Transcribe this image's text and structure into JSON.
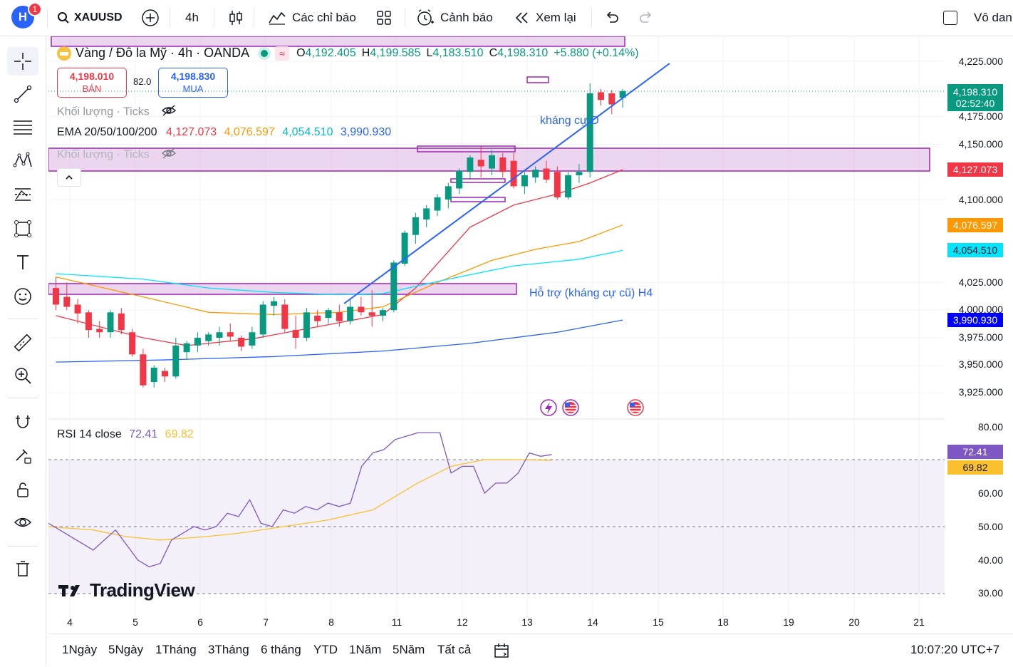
{
  "toolbar": {
    "avatar_letter": "H",
    "notification_count": "1",
    "symbol": "XAUUSD",
    "interval": "4h",
    "indicators_label": "Các chỉ báo",
    "alerts_label": "Cảnh báo",
    "replay_label": "Xem lại",
    "right_label": "Vô dan"
  },
  "legend": {
    "title": "Vàng / Đô la Mỹ · 4h · OANDA",
    "o_label": "O",
    "o_value": "4,192.405",
    "h_label": "H",
    "h_value": "4,199.585",
    "l_label": "L",
    "l_value": "4,183.510",
    "c_label": "C",
    "c_value": "4,198.310",
    "change": "+5.880 (+0.14%)",
    "sell_price": "4,198.010",
    "sell_label": "BÁN",
    "spread": "82.0",
    "buy_price": "4,198.830",
    "buy_label": "MUA",
    "volume_label": "Khối lượng · Ticks",
    "ema_label": "EMA 20/50/100/200",
    "ema20": "4,127.073",
    "ema50": "4,076.597",
    "ema100": "4,054.510",
    "ema200": "3,990.930",
    "rsi_label": "RSI 14 close",
    "rsi_value": "72.41",
    "rsi_ma_value": "69.82"
  },
  "annotations": {
    "resistance": "kháng cự D",
    "support": "Hỗ trợ (kháng cự cũ) H4"
  },
  "price_axis": {
    "ticks": [
      "4,225.000",
      "4,175.000",
      "4,150.000",
      "4,100.000",
      "4,025.000",
      "4,000.000",
      "3,975.000",
      "3,950.000",
      "3,925.000"
    ],
    "current_price": "4,198.310",
    "countdown": "02:52:40",
    "ema20_tag": "4,127.073",
    "ema50_tag": "4,076.597",
    "ema100_tag": "4,054.510",
    "ema200_tag": "3,990.930"
  },
  "rsi_axis": {
    "ticks": [
      "80.00",
      "60.00",
      "50.00",
      "40.00",
      "30.00"
    ],
    "rsi_tag": "72.41",
    "rsi_ma_tag": "69.82"
  },
  "time_axis": {
    "labels": [
      "4",
      "5",
      "6",
      "7",
      "8",
      "11",
      "12",
      "13",
      "14",
      "15",
      "18",
      "19",
      "20",
      "21"
    ]
  },
  "bottom": {
    "ranges": [
      "1Ngày",
      "5Ngày",
      "1Tháng",
      "3Tháng",
      "6 tháng",
      "YTD",
      "1Năm",
      "5Năm",
      "Tất cả"
    ],
    "clock": "10:07:20 UTC+7"
  },
  "watermark": "TradingView",
  "colors": {
    "up": "#089981",
    "down": "#f23645",
    "ema20": "#f23645",
    "ema50": "#ff9800",
    "ema100": "#00e5ff",
    "ema200": "#2962ff",
    "zone": "#9c27b0",
    "trendline": "#2962ff",
    "rsi": "#7e57c2",
    "rsi_ma": "#fbc02d"
  }
}
